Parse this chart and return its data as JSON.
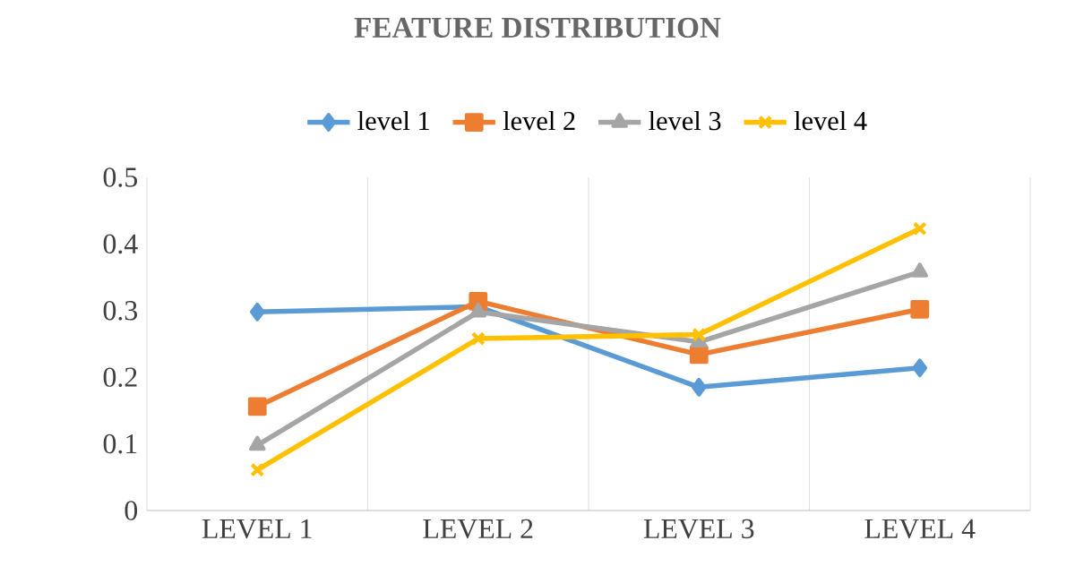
{
  "chart_data": {
    "type": "line",
    "title": "FEATURE DISTRIBUTION",
    "categories": [
      "LEVEL 1",
      "LEVEL 2",
      "LEVEL 3",
      "LEVEL 4"
    ],
    "series": [
      {
        "name": "level 1",
        "color": "#5b9bd5",
        "marker": "diamond",
        "values": [
          0.298,
          0.306,
          0.185,
          0.214
        ]
      },
      {
        "name": "level 2",
        "color": "#ed7d31",
        "marker": "square",
        "values": [
          0.156,
          0.314,
          0.234,
          0.302
        ]
      },
      {
        "name": "level 3",
        "color": "#a5a5a5",
        "marker": "triangle",
        "values": [
          0.098,
          0.298,
          0.253,
          0.358
        ]
      },
      {
        "name": "level 4",
        "color": "#ffc000",
        "marker": "cross",
        "values": [
          0.061,
          0.258,
          0.264,
          0.423
        ]
      }
    ],
    "ylim": [
      0,
      0.5
    ],
    "yticks": [
      0,
      0.1,
      0.2,
      0.3,
      0.4,
      0.5
    ],
    "grid": "x",
    "legend": "top",
    "line_style": "solid"
  }
}
